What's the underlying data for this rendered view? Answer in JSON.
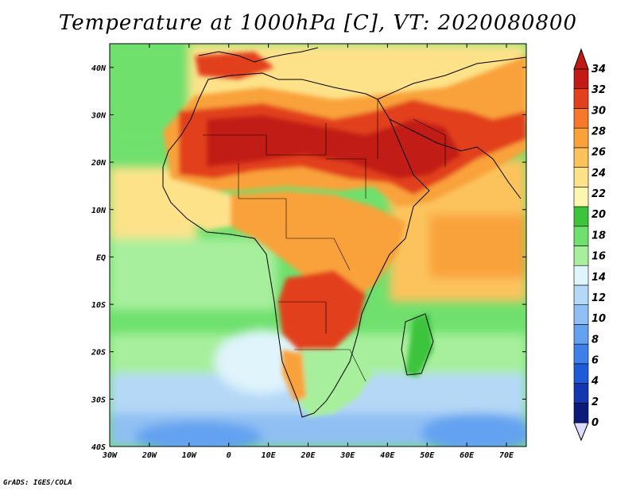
{
  "title": "Temperature at 1000hPa [C], VT: 2020080800",
  "credit": "GrADS: IGES/COLA",
  "map": {
    "lat_labels": [
      "40N",
      "30N",
      "20N",
      "10N",
      "EQ",
      "10S",
      "20S",
      "30S",
      "40S"
    ],
    "lon_labels": [
      "30W",
      "20W",
      "10W",
      "0",
      "10E",
      "20E",
      "30E",
      "40E",
      "50E",
      "60E",
      "70E"
    ],
    "lat_range": [
      -40,
      45
    ],
    "lon_range": [
      -30,
      75
    ],
    "ocean_color": "#7fe07a",
    "land_outline_color": "#000000"
  },
  "colorbar": {
    "levels": [
      "0",
      "2",
      "4",
      "6",
      "8",
      "10",
      "12",
      "14",
      "16",
      "18",
      "20",
      "22",
      "24",
      "26",
      "28",
      "30",
      "32",
      "34"
    ],
    "colors": [
      "#0b1b7a",
      "#1436b0",
      "#1f5bd6",
      "#3f80e8",
      "#64a2f0",
      "#8fbff3",
      "#b5d8f7",
      "#dff4fb",
      "#a7ef9c",
      "#6fe06d",
      "#3cc43c",
      "#fdf6b0",
      "#fde28a",
      "#fcc35d",
      "#f9a23a",
      "#f5782b",
      "#e2411f",
      "#c21a14"
    ]
  }
}
